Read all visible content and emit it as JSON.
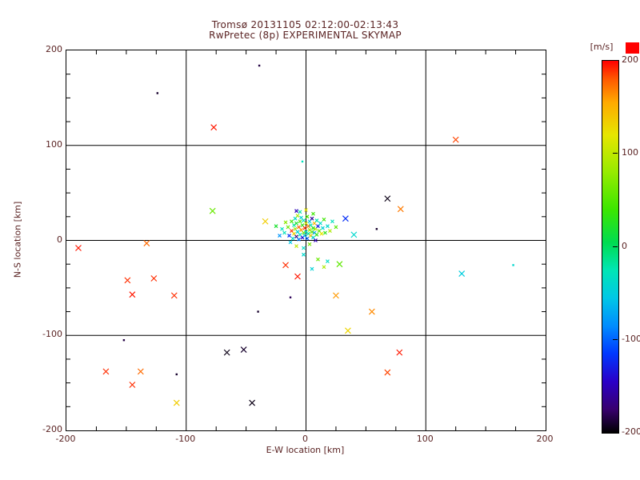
{
  "title": {
    "line1": "Tromsø 20131105 02:12:00-02:13:43",
    "line2": "RwPretec (8p) EXPERIMENTAL SKYMAP"
  },
  "colors": {
    "text": "#5a2323",
    "axis": "#000000",
    "background": "#ffffff",
    "red_marker": "#ff0000"
  },
  "chart_data": {
    "type": "scatter",
    "title": "Tromsø 20131105 02:12:00-02:13:43 / RwPretec (8p) EXPERIMENTAL SKYMAP",
    "xlabel": "E-W location [km]",
    "ylabel": "N-S location [km]",
    "xlim": [
      -200,
      200
    ],
    "ylim": [
      -200,
      200
    ],
    "grid_lines": [
      -100,
      0,
      100
    ],
    "minor_tick_step": 25,
    "x_ticks": [
      {
        "v": -200,
        "label": "-200"
      },
      {
        "v": -100,
        "label": "-100"
      },
      {
        "v": 0,
        "label": "0"
      },
      {
        "v": 100,
        "label": "100"
      },
      {
        "v": 200,
        "label": "200"
      }
    ],
    "y_ticks": [
      {
        "v": -200,
        "label": "-200"
      },
      {
        "v": -100,
        "label": "-100"
      },
      {
        "v": 0,
        "label": "0"
      },
      {
        "v": 100,
        "label": "100"
      },
      {
        "v": 200,
        "label": "200"
      }
    ],
    "colorbar": {
      "label": "[m/s]",
      "min": -200,
      "max": 200,
      "ticks": [
        {
          "v": 200,
          "label": "200"
        },
        {
          "v": 100,
          "label": "100"
        },
        {
          "v": 0,
          "label": "0"
        },
        {
          "v": -100,
          "label": "-100"
        },
        {
          "v": -200,
          "label": "-200"
        }
      ],
      "stops": [
        [
          -200,
          "#000000"
        ],
        [
          -175,
          "#38006e"
        ],
        [
          -145,
          "#2a00c8"
        ],
        [
          -115,
          "#0038ff"
        ],
        [
          -85,
          "#008cff"
        ],
        [
          -55,
          "#00c8e6"
        ],
        [
          -25,
          "#00e6b4"
        ],
        [
          5,
          "#00dc50"
        ],
        [
          40,
          "#3ce600"
        ],
        [
          80,
          "#96eb00"
        ],
        [
          120,
          "#e6e600"
        ],
        [
          155,
          "#ffaa00"
        ],
        [
          180,
          "#ff5a00"
        ],
        [
          200,
          "#ff0000"
        ]
      ]
    },
    "points_columns": [
      "x_km",
      "y_km",
      "velocity_ms",
      "marker"
    ],
    "points": [
      [
        -124,
        155,
        -190,
        "."
      ],
      [
        -77,
        119,
        195,
        "x"
      ],
      [
        -39,
        184,
        -185,
        "."
      ],
      [
        -78,
        31,
        60,
        "x"
      ],
      [
        125,
        106,
        185,
        "x"
      ],
      [
        -3,
        83,
        -30,
        "."
      ],
      [
        68,
        44,
        -195,
        "x"
      ],
      [
        79,
        33,
        170,
        "x"
      ],
      [
        -190,
        -8,
        195,
        "x"
      ],
      [
        -133,
        -3,
        175,
        "x"
      ],
      [
        -149,
        -42,
        190,
        "x"
      ],
      [
        -127,
        -40,
        190,
        "x"
      ],
      [
        -145,
        -57,
        195,
        "x"
      ],
      [
        -110,
        -58,
        190,
        "x"
      ],
      [
        -7,
        -38,
        195,
        "x"
      ],
      [
        -13,
        -60,
        -180,
        "."
      ],
      [
        28,
        -25,
        55,
        "x"
      ],
      [
        130,
        -35,
        -50,
        "x"
      ],
      [
        173,
        -26,
        -40,
        "."
      ],
      [
        25,
        -58,
        160,
        "x"
      ],
      [
        -40,
        -75,
        -190,
        "."
      ],
      [
        55,
        -75,
        165,
        "x"
      ],
      [
        35,
        -95,
        130,
        "x"
      ],
      [
        -152,
        -105,
        -185,
        "."
      ],
      [
        -66,
        -118,
        -195,
        "x"
      ],
      [
        -52,
        -115,
        -190,
        "x"
      ],
      [
        78,
        -118,
        195,
        "x"
      ],
      [
        -167,
        -138,
        190,
        "x"
      ],
      [
        -138,
        -138,
        175,
        "x"
      ],
      [
        -145,
        -152,
        190,
        "x"
      ],
      [
        -108,
        -141,
        -190,
        "."
      ],
      [
        68,
        -139,
        185,
        "x"
      ],
      [
        -108,
        -171,
        135,
        "x"
      ],
      [
        -45,
        -171,
        -195,
        "x"
      ],
      [
        59,
        12,
        -190,
        "."
      ],
      [
        -34,
        20,
        135,
        "x"
      ],
      [
        33,
        23,
        -120,
        "x"
      ],
      [
        40,
        6,
        -40,
        "x"
      ],
      [
        -17,
        -26,
        190,
        "x"
      ]
    ],
    "cluster_points_columns": [
      "x_km",
      "y_km",
      "velocity_ms"
    ],
    "cluster_points": [
      [
        -18,
        8,
        -30
      ],
      [
        -15,
        14,
        60
      ],
      [
        -14,
        5,
        -120
      ],
      [
        -12,
        20,
        40
      ],
      [
        -12,
        10,
        190
      ],
      [
        -11,
        2,
        -40
      ],
      [
        -10,
        16,
        -20
      ],
      [
        -10,
        7,
        130
      ],
      [
        -9,
        23,
        -35
      ],
      [
        -9,
        12,
        80
      ],
      [
        -8,
        4,
        -170
      ],
      [
        -8,
        18,
        20
      ],
      [
        -7,
        9,
        -50
      ],
      [
        -7,
        26,
        90
      ],
      [
        -6,
        14,
        180
      ],
      [
        -6,
        1,
        -90
      ],
      [
        -5,
        20,
        50
      ],
      [
        -5,
        6,
        -25
      ],
      [
        -4,
        11,
        160
      ],
      [
        -4,
        24,
        -45
      ],
      [
        -3,
        16,
        30
      ],
      [
        -3,
        3,
        -140
      ],
      [
        -2,
        8,
        70
      ],
      [
        -2,
        21,
        -30
      ],
      [
        -1,
        13,
        190
      ],
      [
        -1,
        5,
        -60
      ],
      [
        0,
        18,
        110
      ],
      [
        0,
        9,
        -35
      ],
      [
        1,
        25,
        45
      ],
      [
        1,
        2,
        -100
      ],
      [
        2,
        15,
        170
      ],
      [
        2,
        7,
        -20
      ],
      [
        3,
        11,
        85
      ],
      [
        3,
        20,
        -50
      ],
      [
        4,
        5,
        140
      ],
      [
        4,
        16,
        -30
      ],
      [
        5,
        9,
        60
      ],
      [
        5,
        23,
        -160
      ],
      [
        6,
        13,
        25
      ],
      [
        6,
        3,
        -40
      ],
      [
        7,
        18,
        150
      ],
      [
        7,
        8,
        -70
      ],
      [
        8,
        12,
        95
      ],
      [
        9,
        21,
        -25
      ],
      [
        9,
        6,
        35
      ],
      [
        10,
        15,
        -130
      ],
      [
        11,
        10,
        55
      ],
      [
        12,
        18,
        -35
      ],
      [
        13,
        7,
        120
      ],
      [
        14,
        13,
        -45
      ],
      [
        15,
        22,
        40
      ],
      [
        -20,
        12,
        -30
      ],
      [
        -17,
        19,
        75
      ],
      [
        -13,
        -2,
        -55
      ],
      [
        -8,
        -6,
        100
      ],
      [
        -2,
        -8,
        -35
      ],
      [
        3,
        -4,
        65
      ],
      [
        8,
        0,
        -150
      ],
      [
        16,
        8,
        30
      ],
      [
        18,
        15,
        -40
      ],
      [
        -25,
        15,
        20
      ],
      [
        -22,
        5,
        -80
      ],
      [
        20,
        10,
        90
      ],
      [
        22,
        20,
        -30
      ],
      [
        25,
        14,
        50
      ],
      [
        -2,
        -15,
        -40
      ],
      [
        10,
        -20,
        60
      ],
      [
        18,
        -22,
        -35
      ],
      [
        15,
        -28,
        90
      ],
      [
        5,
        -30,
        -45
      ],
      [
        -5,
        30,
        -20
      ],
      [
        0,
        32,
        120
      ],
      [
        -8,
        31,
        -150
      ],
      [
        6,
        28,
        40
      ]
    ]
  }
}
